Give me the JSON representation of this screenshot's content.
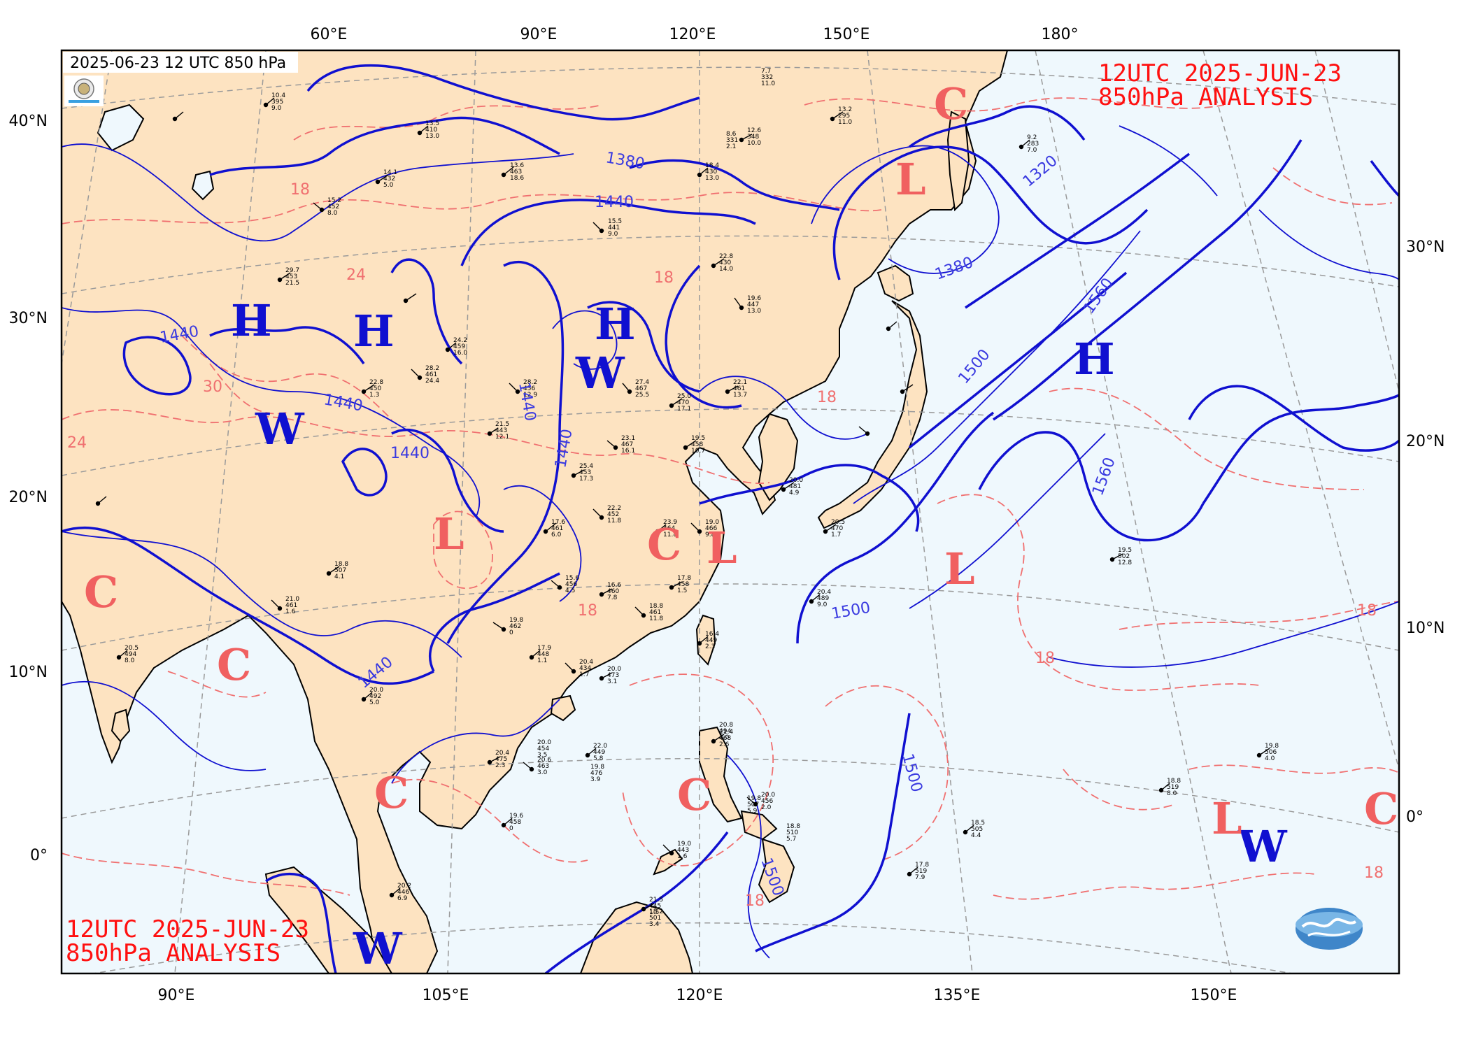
{
  "header": {
    "datetime_label": "2025-06-23 12 UTC 850 hPa"
  },
  "titles": {
    "top_right_line1": "12UTC  2025-JUN-23",
    "top_right_line2": "850hPa ANALYSIS",
    "bottom_left_line1": "12UTC  2025-JUN-23",
    "bottom_left_line2": "850hPa ANALYSIS"
  },
  "axes": {
    "top_lon": [
      "60°E",
      "90°E",
      "120°E",
      "150°E",
      "180°"
    ],
    "bottom_lon": [
      "90°E",
      "105°E",
      "120°E",
      "135°E",
      "150°E"
    ],
    "left_lat": [
      "40°N",
      "30°N",
      "20°N",
      "10°N",
      "0°"
    ],
    "right_lat": [
      "30°N",
      "20°N",
      "10°N",
      "0°"
    ]
  },
  "colors": {
    "land": "#fde3c1",
    "ocean": "#eff8fd",
    "height_contour": "#1010d0",
    "temp_contour": "#f07070",
    "grid": "#9a9a9a"
  },
  "height_labels": [
    "1380",
    "1440",
    "1320",
    "1380",
    "1560",
    "1500",
    "1440",
    "1440",
    "1440",
    "1440",
    "1440",
    "1560",
    "1500",
    "1440",
    "1500",
    "1500"
  ],
  "temp_labels": [
    "18",
    "24",
    "30",
    "24",
    "18",
    "18",
    "18",
    "18",
    "18",
    "18",
    "18"
  ],
  "systems": [
    {
      "letter": "H",
      "kind": "high"
    },
    {
      "letter": "H",
      "kind": "high"
    },
    {
      "letter": "H",
      "kind": "high"
    },
    {
      "letter": "H",
      "kind": "high"
    },
    {
      "letter": "W",
      "kind": "high"
    },
    {
      "letter": "W",
      "kind": "high"
    },
    {
      "letter": "W",
      "kind": "high"
    },
    {
      "letter": "W",
      "kind": "high"
    },
    {
      "letter": "L",
      "kind": "low"
    },
    {
      "letter": "L",
      "kind": "low"
    },
    {
      "letter": "L",
      "kind": "low"
    },
    {
      "letter": "L",
      "kind": "low"
    },
    {
      "letter": "L",
      "kind": "low"
    },
    {
      "letter": "C",
      "kind": "low"
    },
    {
      "letter": "C",
      "kind": "low"
    },
    {
      "letter": "C",
      "kind": "low"
    },
    {
      "letter": "C",
      "kind": "low"
    },
    {
      "letter": "C",
      "kind": "low"
    },
    {
      "letter": "C",
      "kind": "low"
    },
    {
      "letter": "C",
      "kind": "low"
    }
  ],
  "stations": [
    {
      "t": "13.6",
      "h": "463",
      "d": "18.6"
    },
    {
      "t": "15.5",
      "h": "441",
      "d": "9.0"
    },
    {
      "t": "18.4",
      "h": "430",
      "d": "13.0"
    },
    {
      "t": "12.6",
      "h": "348",
      "d": "10.0"
    },
    {
      "t": "22.8",
      "h": "430",
      "d": "14.0"
    },
    {
      "t": "19.6",
      "h": "447",
      "d": "13.0"
    },
    {
      "t": "25.0",
      "h": "470",
      "d": "17.1"
    },
    {
      "t": "27.4",
      "h": "467",
      "d": "25.5"
    },
    {
      "t": "22.1",
      "h": "461",
      "d": "13.7"
    },
    {
      "t": "19.5",
      "h": "458",
      "d": "10.7"
    },
    {
      "t": "23.1",
      "h": "467",
      "d": "16.1"
    },
    {
      "t": "25.4",
      "h": "453",
      "d": "17.3"
    },
    {
      "t": "22.2",
      "h": "452",
      "d": "11.8"
    },
    {
      "t": "23.9",
      "h": "464",
      "d": "11.8"
    },
    {
      "t": "19.0",
      "h": "466",
      "d": "9.8"
    },
    {
      "t": "17.6",
      "h": "461",
      "d": "6.0"
    },
    {
      "t": "15.6",
      "h": "456",
      "d": "4.5"
    },
    {
      "t": "16.6",
      "h": "460",
      "d": "7.8"
    },
    {
      "t": "18.8",
      "h": "461",
      "d": "11.8"
    },
    {
      "t": "17.8",
      "h": "458",
      "d": "1.5"
    },
    {
      "t": "16.4",
      "h": "449",
      "d": "2.3"
    },
    {
      "t": "19.8",
      "h": "462",
      "d": "0"
    },
    {
      "t": "17.9",
      "h": "448",
      "d": "1.1"
    },
    {
      "t": "20.4",
      "h": "434",
      "d": "1.7"
    },
    {
      "t": "20.0",
      "h": "473",
      "d": "3.1"
    },
    {
      "t": "21.4",
      "h": "468",
      "d": "2.6"
    },
    {
      "t": "20.0",
      "h": "456",
      "d": "2.0"
    },
    {
      "t": "19.0",
      "h": "443",
      "d": "1.6"
    },
    {
      "t": "21.5",
      "h": "445",
      "d": "1.5"
    },
    {
      "t": "22.0",
      "h": "449",
      "d": "5.8"
    },
    {
      "t": "20.6",
      "h": "463",
      "d": "3.0"
    },
    {
      "t": "20.4",
      "h": "475",
      "d": "2.3"
    },
    {
      "t": "20.5",
      "h": "470",
      "d": "1.7"
    },
    {
      "t": "20.0",
      "h": "481",
      "d": "4.9"
    },
    {
      "t": "20.4",
      "h": "489",
      "d": "9.0"
    },
    {
      "t": "19.5",
      "h": "502",
      "d": "12.8"
    },
    {
      "t": "18.5",
      "h": "505",
      "d": "4.4"
    },
    {
      "t": "17.8",
      "h": "519",
      "d": "7.9"
    },
    {
      "t": "18.8",
      "h": "519",
      "d": "8.0"
    },
    {
      "t": "19.8",
      "h": "506",
      "d": "4.0"
    },
    {
      "t": "20.8",
      "h": "494",
      "d": "7.0"
    },
    {
      "t": "19.8",
      "h": "507",
      "d": "5.9"
    },
    {
      "t": "18.8",
      "h": "510",
      "d": "5.7"
    },
    {
      "t": "18.2",
      "h": "501",
      "d": "3.4"
    },
    {
      "t": "19.8",
      "h": "476",
      "d": "3.9"
    },
    {
      "t": "20.0",
      "h": "454",
      "d": "3.5"
    },
    {
      "t": "19.6",
      "h": "458",
      "d": "0"
    },
    {
      "t": "20.2",
      "h": "446",
      "d": "6.9"
    },
    {
      "t": "20.0",
      "h": "492",
      "d": "5.0"
    },
    {
      "t": "18.8",
      "h": "507",
      "d": "4.1"
    },
    {
      "t": "21.0",
      "h": "461",
      "d": "1.6"
    },
    {
      "t": "20.5",
      "h": "494",
      "d": "8.0"
    },
    {
      "t": "28.2",
      "h": "461",
      "d": "24.4"
    },
    {
      "t": "24.2",
      "h": "459",
      "d": "16.0"
    },
    {
      "t": "29.7",
      "h": "453",
      "d": "21.5"
    },
    {
      "t": "21.5",
      "h": "443",
      "d": "12.1"
    },
    {
      "t": "28.2",
      "h": "456",
      "d": "12.9"
    },
    {
      "t": "22.8",
      "h": "450",
      "d": "1.3"
    },
    {
      "t": "15.2",
      "h": "452",
      "d": "8.0"
    },
    {
      "t": "14.1",
      "h": "432",
      "d": "5.0"
    },
    {
      "t": "13.5",
      "h": "410",
      "d": "13.0"
    },
    {
      "t": "10.4",
      "h": "395",
      "d": "9.0"
    },
    {
      "t": "8.6",
      "h": "331",
      "d": "2.1"
    },
    {
      "t": "13.2",
      "h": "295",
      "d": "11.0"
    },
    {
      "t": "7.7",
      "h": "332",
      "d": "11.0"
    },
    {
      "t": "9.2",
      "h": "283",
      "d": "7.0"
    }
  ]
}
